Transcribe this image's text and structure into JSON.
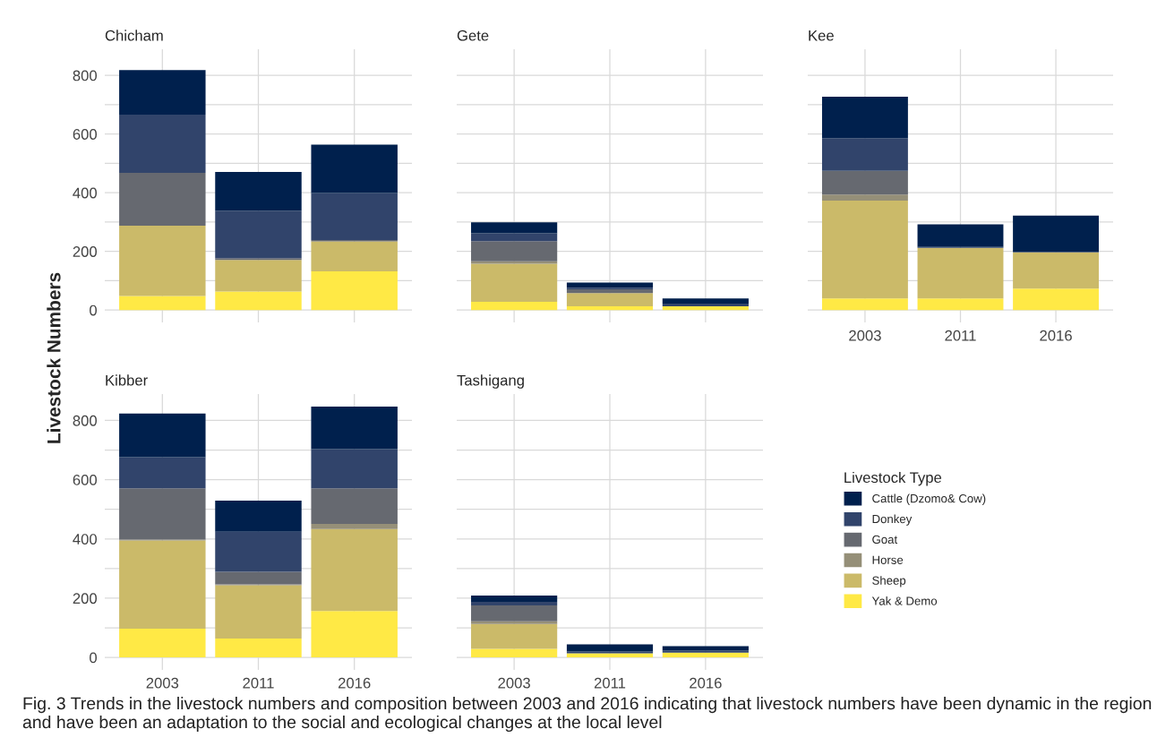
{
  "chart_data": [
    {
      "type": "bar",
      "stacked": true,
      "title": "Chicham",
      "ylabel": "Livestock Numbers",
      "legend_title": "Livestock Type",
      "legend": "right",
      "grid": true,
      "tick_labels": "y",
      "categories": [
        "2003",
        "2011",
        "2016"
      ],
      "ylim": [
        -42,
        889
      ],
      "yticks": [
        0,
        {
          "value": 100,
          "label": null
        },
        200,
        {
          "value": 300,
          "label": null
        },
        400,
        {
          "value": 500,
          "label": null
        },
        600,
        {
          "value": 700,
          "label": null
        },
        800
      ],
      "series": [
        {
          "name": "Yak & Demo",
          "color": "#ffe945",
          "values": [
            48,
            63,
            132
          ]
        },
        {
          "name": "Sheep",
          "color": "#cbba69",
          "values": [
            240,
            108,
            102
          ]
        },
        {
          "name": "Horse",
          "color": "#958f78",
          "values": [
            0,
            0,
            0
          ]
        },
        {
          "name": "Goat",
          "color": "#666970",
          "values": [
            180,
            6,
            5
          ]
        },
        {
          "name": "Donkey",
          "color": "#31446b",
          "values": [
            198,
            162,
            160
          ]
        },
        {
          "name": "Cattle (Dzomo& Cow)",
          "color": "#00204d",
          "values": [
            152,
            132,
            165
          ]
        }
      ]
    },
    {
      "type": "bar",
      "stacked": true,
      "title": "Gete",
      "grid": true,
      "tick_labels": false,
      "categories": [
        "2003",
        "2011",
        "2016"
      ],
      "ylim": [
        -42,
        889
      ],
      "yticks": [
        0,
        {
          "value": 100,
          "label": null
        },
        200,
        {
          "value": 300,
          "label": null
        },
        400,
        {
          "value": 500,
          "label": null
        },
        600,
        {
          "value": 700,
          "label": null
        },
        800
      ],
      "series": [
        {
          "color": "#ffe945",
          "values": [
            28,
            13,
            13
          ]
        },
        {
          "color": "#cbba69",
          "values": [
            130,
            45,
            0
          ]
        },
        {
          "color": "#958f78",
          "values": [
            8,
            0,
            0
          ]
        },
        {
          "color": "#666970",
          "values": [
            69,
            13,
            0
          ]
        },
        {
          "color": "#31446b",
          "values": [
            27,
            5,
            9
          ]
        },
        {
          "color": "#00204d",
          "values": [
            37,
            18,
            18
          ]
        }
      ]
    },
    {
      "type": "bar",
      "stacked": true,
      "title": "Kee",
      "grid": true,
      "tick_labels": "x",
      "categories": [
        "2003",
        "2011",
        "2016"
      ],
      "ylim": [
        -42,
        889
      ],
      "yticks": [
        0,
        {
          "value": 100,
          "label": null
        },
        200,
        {
          "value": 300,
          "label": null
        },
        400,
        {
          "value": 500,
          "label": null
        },
        600,
        {
          "value": 700,
          "label": null
        },
        800
      ],
      "series": [
        {
          "color": "#ffe945",
          "values": [
            40,
            40,
            73
          ]
        },
        {
          "color": "#cbba69",
          "values": [
            333,
            172,
            124
          ]
        },
        {
          "color": "#958f78",
          "values": [
            21,
            0,
            0
          ]
        },
        {
          "color": "#666970",
          "values": [
            81,
            0,
            0
          ]
        },
        {
          "color": "#31446b",
          "values": [
            111,
            3,
            2
          ]
        },
        {
          "color": "#00204d",
          "values": [
            141,
            77,
            123
          ]
        }
      ]
    },
    {
      "type": "bar",
      "stacked": true,
      "title": "Kibber",
      "grid": true,
      "categories": [
        "2003",
        "2011",
        "2016"
      ],
      "ylim": [
        -42,
        889
      ],
      "yticks": [
        0,
        {
          "value": 100,
          "label": null
        },
        200,
        {
          "value": 300,
          "label": null
        },
        400,
        {
          "value": 500,
          "label": null
        },
        600,
        {
          "value": 700,
          "label": null
        },
        800
      ],
      "series": [
        {
          "color": "#ffe945",
          "values": [
            97,
            64,
            157
          ]
        },
        {
          "color": "#cbba69",
          "values": [
            298,
            180,
            276
          ]
        },
        {
          "color": "#958f78",
          "values": [
            3,
            3,
            18
          ]
        },
        {
          "color": "#666970",
          "values": [
            173,
            42,
            120
          ]
        },
        {
          "color": "#31446b",
          "values": [
            105,
            135,
            132
          ]
        },
        {
          "color": "#00204d",
          "values": [
            147,
            105,
            144
          ]
        }
      ]
    },
    {
      "type": "bar",
      "stacked": true,
      "title": "Tashigang",
      "grid": true,
      "tick_labels": "x",
      "categories": [
        "2003",
        "2011",
        "2016"
      ],
      "ylim": [
        -42,
        889
      ],
      "yticks": [
        0,
        {
          "value": 100,
          "label": null
        },
        200,
        {
          "value": 300,
          "label": null
        },
        400,
        {
          "value": 500,
          "label": null
        },
        600,
        {
          "value": 700,
          "label": null
        },
        800
      ],
      "annotations": [
        "Fig. 3 Trends in the livestock numbers and composition between 2003 and 2016 indicating that livestock numbers have been dynamic in the region and have been an adaptation to the social and ecological changes at the local level"
      ],
      "series": [
        {
          "color": "#ffe945",
          "values": [
            29,
            14,
            16
          ]
        },
        {
          "color": "#cbba69",
          "values": [
            84,
            0,
            0
          ]
        },
        {
          "color": "#958f78",
          "values": [
            9,
            0,
            0
          ]
        },
        {
          "color": "#666970",
          "values": [
            54,
            0,
            0
          ]
        },
        {
          "color": "#31446b",
          "values": [
            12,
            6,
            7
          ]
        },
        {
          "color": "#00204d",
          "values": [
            21,
            24,
            15
          ]
        }
      ]
    }
  ]
}
